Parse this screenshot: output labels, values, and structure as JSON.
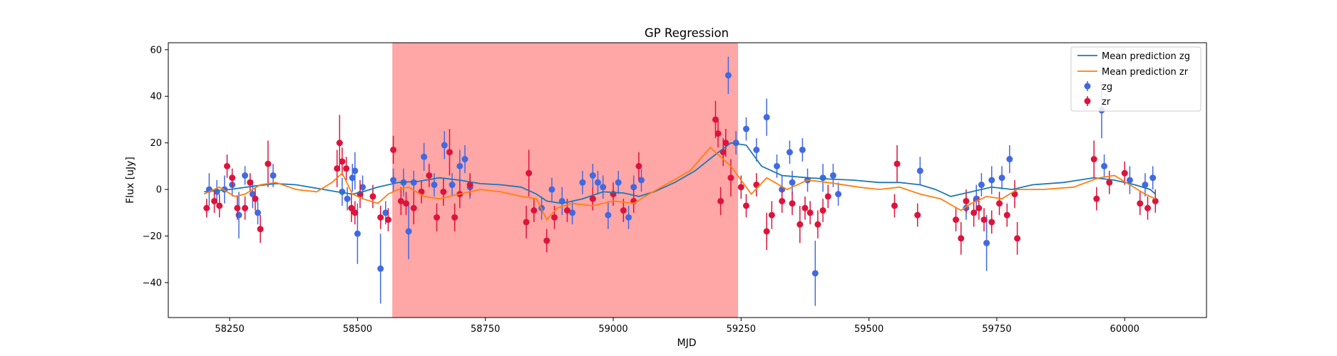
{
  "chart_data": {
    "type": "scatter",
    "title": "GP Regression",
    "xlabel": "MJD",
    "ylabel": "Flux [uJy]",
    "xlim": [
      58130,
      60160
    ],
    "ylim": [
      -55,
      63
    ],
    "xticks": [
      58250,
      58500,
      58750,
      59000,
      59250,
      59500,
      59750,
      60000
    ],
    "yticks": [
      -40,
      -20,
      0,
      20,
      40,
      60
    ],
    "grid": false,
    "legend_position": "top-right",
    "shaded_region": {
      "x_start": 58568,
      "x_end": 59244,
      "color": "#ff0000",
      "opacity": 0.35
    },
    "colors": {
      "zg_line": "#1f77b4",
      "zr_line": "#ff7f0e",
      "zg_points": "#4169e1",
      "zr_points": "#dc143c"
    },
    "lines": [
      {
        "name": "Mean prediction zg",
        "color": "#1f77b4",
        "points": [
          [
            58200,
            -1
          ],
          [
            58250,
            0
          ],
          [
            58300,
            1.5
          ],
          [
            58340,
            2.5
          ],
          [
            58380,
            2
          ],
          [
            58420,
            0.5
          ],
          [
            58460,
            -1
          ],
          [
            58490,
            -2
          ],
          [
            58510,
            -1
          ],
          [
            58540,
            1
          ],
          [
            58580,
            3
          ],
          [
            58620,
            3.5
          ],
          [
            58660,
            5
          ],
          [
            58700,
            4
          ],
          [
            58740,
            2.5
          ],
          [
            58780,
            2
          ],
          [
            58820,
            1
          ],
          [
            58850,
            -2
          ],
          [
            58870,
            -5
          ],
          [
            58900,
            -6
          ],
          [
            58940,
            -4
          ],
          [
            58980,
            -1
          ],
          [
            59020,
            -1.5
          ],
          [
            59050,
            -3
          ],
          [
            59080,
            -1
          ],
          [
            59120,
            3
          ],
          [
            59160,
            8
          ],
          [
            59200,
            15
          ],
          [
            59230,
            20
          ],
          [
            59260,
            19
          ],
          [
            59290,
            10
          ],
          [
            59330,
            6
          ],
          [
            59380,
            5
          ],
          [
            59420,
            4.5
          ],
          [
            59470,
            4
          ],
          [
            59520,
            3
          ],
          [
            59560,
            3
          ],
          [
            59600,
            2
          ],
          [
            59630,
            0
          ],
          [
            59660,
            -3
          ],
          [
            59700,
            -1
          ],
          [
            59740,
            1
          ],
          [
            59780,
            0
          ],
          [
            59820,
            2
          ],
          [
            59880,
            3
          ],
          [
            59940,
            5
          ],
          [
            59980,
            4
          ],
          [
            60020,
            2
          ],
          [
            60050,
            0
          ],
          [
            60060,
            -2
          ]
        ]
      },
      {
        "name": "Mean prediction zr",
        "color": "#ff7f0e",
        "points": [
          [
            58200,
            -2
          ],
          [
            58230,
            1
          ],
          [
            58260,
            -3
          ],
          [
            58280,
            -2
          ],
          [
            58310,
            2
          ],
          [
            58340,
            3
          ],
          [
            58380,
            0
          ],
          [
            58420,
            -1
          ],
          [
            58450,
            3
          ],
          [
            58470,
            7
          ],
          [
            58490,
            -2
          ],
          [
            58510,
            -4
          ],
          [
            58540,
            -6
          ],
          [
            58560,
            -2
          ],
          [
            58580,
            0
          ],
          [
            58600,
            1
          ],
          [
            58630,
            -3
          ],
          [
            58660,
            -4
          ],
          [
            58700,
            -2
          ],
          [
            58740,
            0
          ],
          [
            58780,
            -1
          ],
          [
            58820,
            -3
          ],
          [
            58850,
            -4
          ],
          [
            58870,
            -13
          ],
          [
            58890,
            -8
          ],
          [
            58920,
            -6
          ],
          [
            58960,
            -7
          ],
          [
            59000,
            -5
          ],
          [
            59040,
            -6
          ],
          [
            59070,
            -2
          ],
          [
            59110,
            3
          ],
          [
            59150,
            8
          ],
          [
            59190,
            18
          ],
          [
            59210,
            14
          ],
          [
            59230,
            10
          ],
          [
            59250,
            4
          ],
          [
            59270,
            -2
          ],
          [
            59300,
            5
          ],
          [
            59340,
            0
          ],
          [
            59380,
            4
          ],
          [
            59420,
            3
          ],
          [
            59480,
            1
          ],
          [
            59520,
            0
          ],
          [
            59560,
            1
          ],
          [
            59600,
            -2
          ],
          [
            59640,
            -4
          ],
          [
            59680,
            -9
          ],
          [
            59700,
            -6
          ],
          [
            59730,
            -3
          ],
          [
            59760,
            -4
          ],
          [
            59790,
            0
          ],
          [
            59840,
            0
          ],
          [
            59900,
            1
          ],
          [
            59950,
            5
          ],
          [
            59980,
            6
          ],
          [
            60010,
            2
          ],
          [
            60040,
            -2
          ],
          [
            60060,
            -4
          ]
        ]
      }
    ],
    "series": [
      {
        "name": "zg",
        "color": "#4169e1",
        "points": [
          [
            58210,
            0,
            7
          ],
          [
            58225,
            -1,
            5
          ],
          [
            58240,
            0,
            6
          ],
          [
            58255,
            2,
            5
          ],
          [
            58268,
            -11,
            10
          ],
          [
            58280,
            6,
            4
          ],
          [
            58295,
            -2,
            6
          ],
          [
            58305,
            -10,
            5
          ],
          [
            58335,
            6,
            5
          ],
          [
            58470,
            -1,
            6
          ],
          [
            58480,
            -4,
            5
          ],
          [
            58490,
            5,
            6
          ],
          [
            58495,
            8,
            8
          ],
          [
            58500,
            -19,
            13
          ],
          [
            58510,
            1,
            5
          ],
          [
            58545,
            -34,
            15
          ],
          [
            58555,
            -10,
            5
          ],
          [
            58570,
            4,
            5
          ],
          [
            58590,
            3,
            6
          ],
          [
            58600,
            -18,
            12
          ],
          [
            58610,
            3,
            5
          ],
          [
            58630,
            14,
            6
          ],
          [
            58650,
            2,
            5
          ],
          [
            58670,
            19,
            6
          ],
          [
            58685,
            2,
            5
          ],
          [
            58700,
            10,
            7
          ],
          [
            58710,
            13,
            6
          ],
          [
            58720,
            1,
            5
          ],
          [
            58860,
            -8,
            5
          ],
          [
            58880,
            0,
            5
          ],
          [
            58900,
            -5,
            6
          ],
          [
            58920,
            -10,
            5
          ],
          [
            58940,
            3,
            5
          ],
          [
            58960,
            6,
            5
          ],
          [
            58970,
            3,
            5
          ],
          [
            58980,
            1,
            5
          ],
          [
            58990,
            -11,
            6
          ],
          [
            59010,
            3,
            5
          ],
          [
            59030,
            -12,
            5
          ],
          [
            59040,
            1,
            5
          ],
          [
            59055,
            4,
            5
          ],
          [
            59225,
            49,
            8
          ],
          [
            59240,
            20,
            5
          ],
          [
            59260,
            26,
            5
          ],
          [
            59280,
            17,
            5
          ],
          [
            59300,
            31,
            8
          ],
          [
            59320,
            10,
            5
          ],
          [
            59330,
            0,
            6
          ],
          [
            59345,
            16,
            5
          ],
          [
            59350,
            3,
            5
          ],
          [
            59370,
            17,
            5
          ],
          [
            59380,
            4,
            5
          ],
          [
            59395,
            -36,
            14
          ],
          [
            59410,
            5,
            6
          ],
          [
            59430,
            6,
            5
          ],
          [
            59440,
            -2,
            5
          ],
          [
            59600,
            8,
            6
          ],
          [
            59690,
            -8,
            5
          ],
          [
            59710,
            -4,
            6
          ],
          [
            59720,
            2,
            5
          ],
          [
            59730,
            -23,
            12
          ],
          [
            59740,
            4,
            6
          ],
          [
            59760,
            5,
            5
          ],
          [
            59775,
            13,
            6
          ],
          [
            59955,
            34,
            12
          ],
          [
            59960,
            10,
            5
          ],
          [
            60010,
            4,
            6
          ],
          [
            60040,
            2,
            5
          ],
          [
            60055,
            5,
            5
          ]
        ]
      },
      {
        "name": "zr",
        "color": "#dc143c",
        "points": [
          [
            58205,
            -8,
            4
          ],
          [
            58220,
            -5,
            5
          ],
          [
            58230,
            -7,
            5
          ],
          [
            58245,
            10,
            5
          ],
          [
            58255,
            5,
            4
          ],
          [
            58265,
            -8,
            5
          ],
          [
            58280,
            -8,
            5
          ],
          [
            58290,
            3,
            4
          ],
          [
            58300,
            -4,
            5
          ],
          [
            58310,
            -17,
            6
          ],
          [
            58325,
            11,
            10
          ],
          [
            58460,
            9,
            8
          ],
          [
            58465,
            20,
            12
          ],
          [
            58470,
            12,
            6
          ],
          [
            58478,
            9,
            5
          ],
          [
            58488,
            -8,
            6
          ],
          [
            58495,
            -10,
            5
          ],
          [
            58505,
            -2,
            6
          ],
          [
            58530,
            -3,
            5
          ],
          [
            58545,
            -12,
            5
          ],
          [
            58560,
            -13,
            5
          ],
          [
            58570,
            17,
            6
          ],
          [
            58585,
            -5,
            6
          ],
          [
            58595,
            -6,
            5
          ],
          [
            58610,
            -8,
            7
          ],
          [
            58625,
            -1,
            5
          ],
          [
            58640,
            6,
            5
          ],
          [
            58655,
            -12,
            6
          ],
          [
            58668,
            -1,
            6
          ],
          [
            58680,
            16,
            10
          ],
          [
            58690,
            -12,
            6
          ],
          [
            58700,
            -2,
            6
          ],
          [
            58720,
            2,
            5
          ],
          [
            58830,
            -14,
            7
          ],
          [
            58835,
            7,
            10
          ],
          [
            58845,
            -9,
            5
          ],
          [
            58870,
            -22,
            5
          ],
          [
            58885,
            -12,
            5
          ],
          [
            58910,
            -9,
            5
          ],
          [
            58960,
            -4,
            5
          ],
          [
            59000,
            -2,
            5
          ],
          [
            59020,
            -9,
            5
          ],
          [
            59040,
            -5,
            5
          ],
          [
            59050,
            10,
            6
          ],
          [
            59200,
            30,
            8
          ],
          [
            59205,
            24,
            6
          ],
          [
            59210,
            -5,
            6
          ],
          [
            59215,
            16,
            6
          ],
          [
            59220,
            20,
            6
          ],
          [
            59230,
            5,
            8
          ],
          [
            59250,
            1,
            5
          ],
          [
            59260,
            -7,
            5
          ],
          [
            59280,
            2,
            5
          ],
          [
            59300,
            -18,
            8
          ],
          [
            59310,
            -11,
            6
          ],
          [
            59330,
            -5,
            5
          ],
          [
            59350,
            -6,
            5
          ],
          [
            59365,
            -15,
            8
          ],
          [
            59375,
            -8,
            5
          ],
          [
            59385,
            -10,
            5
          ],
          [
            59400,
            -15,
            6
          ],
          [
            59410,
            -9,
            5
          ],
          [
            59420,
            -3,
            5
          ],
          [
            59550,
            -7,
            5
          ],
          [
            59555,
            11,
            8
          ],
          [
            59595,
            -11,
            5
          ],
          [
            59670,
            -13,
            5
          ],
          [
            59680,
            -21,
            7
          ],
          [
            59690,
            -5,
            5
          ],
          [
            59705,
            -10,
            6
          ],
          [
            59715,
            -8,
            5
          ],
          [
            59725,
            -13,
            5
          ],
          [
            59740,
            -14,
            5
          ],
          [
            59755,
            -6,
            5
          ],
          [
            59770,
            -11,
            5
          ],
          [
            59785,
            -2,
            6
          ],
          [
            59790,
            -21,
            7
          ],
          [
            59940,
            13,
            8
          ],
          [
            59945,
            -4,
            5
          ],
          [
            59970,
            3,
            5
          ],
          [
            60000,
            7,
            5
          ],
          [
            60030,
            -6,
            5
          ],
          [
            60045,
            -8,
            5
          ],
          [
            60060,
            -5,
            5
          ]
        ]
      }
    ]
  }
}
